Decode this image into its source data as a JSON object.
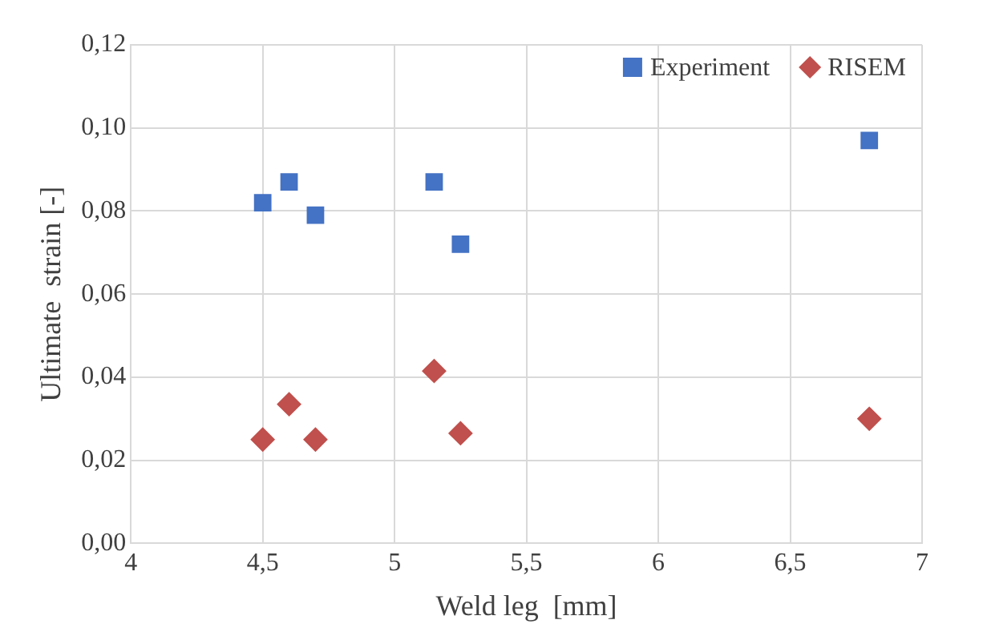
{
  "chart_data": {
    "type": "scatter",
    "xlabel": "Weld leg  [mm]",
    "ylabel": "Ultimate  strain [-]",
    "xlim": [
      4,
      7
    ],
    "xticks": [
      4,
      {
        "value": 4.5,
        "label": "4,5"
      },
      5,
      {
        "value": 5.5,
        "label": "5,5"
      },
      6,
      {
        "value": 6.5,
        "label": "6,5"
      },
      7
    ],
    "ylim": [
      0,
      0.12
    ],
    "yticks": [
      {
        "value": 0,
        "label": "0,00"
      },
      {
        "value": 0.02,
        "label": "0,02"
      },
      {
        "value": 0.04,
        "label": "0,04"
      },
      {
        "value": 0.06,
        "label": "0,06"
      },
      {
        "value": 0.08,
        "label": "0,08"
      },
      {
        "value": 0.1,
        "label": "0,10"
      },
      {
        "value": 0.12,
        "label": "0,12"
      }
    ],
    "grid": true,
    "legend": "top right",
    "series": [
      {
        "name": "Experiment",
        "color": "#4472c4",
        "marker": "square",
        "x": [
          4.5,
          4.6,
          4.7,
          5.15,
          5.25,
          6.8
        ],
        "values": [
          0.082,
          0.087,
          0.079,
          0.087,
          0.072,
          0.097
        ]
      },
      {
        "name": "RISEM",
        "color": "#c0504d",
        "marker": "diamond",
        "x": [
          4.5,
          4.6,
          4.7,
          5.15,
          5.25,
          6.8
        ],
        "values": [
          0.025,
          0.0335,
          0.025,
          0.0415,
          0.0265,
          0.03
        ]
      }
    ]
  }
}
